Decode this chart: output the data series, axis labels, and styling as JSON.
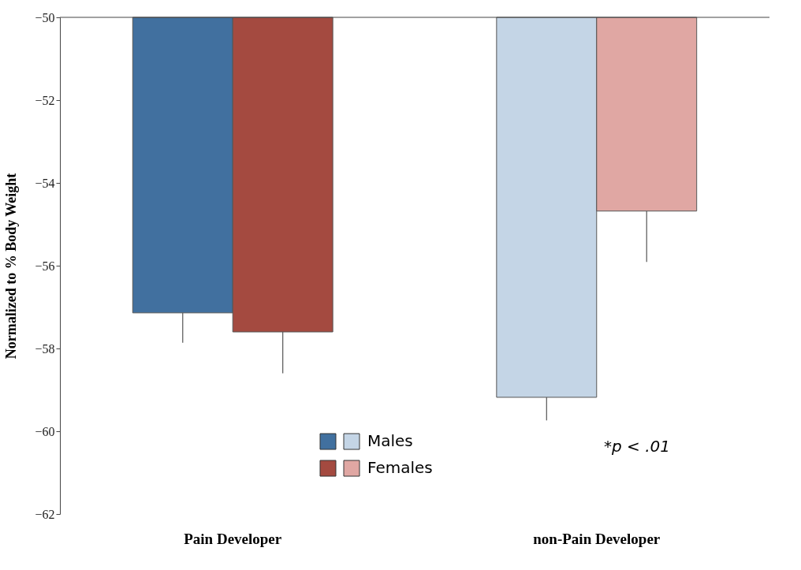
{
  "chart_data": {
    "type": "bar",
    "ylabel": "Normalized to % Body Weight",
    "categories": [
      "Pain Developer",
      "non-Pain Developer"
    ],
    "series": [
      {
        "name": "Males",
        "colors": [
          "#41709f",
          "#c4d5e6"
        ],
        "values": [
          -57.14,
          -59.18
        ],
        "errors": [
          [
            -57.86,
            -57.14
          ],
          [
            -59.74,
            -59.18
          ]
        ]
      },
      {
        "name": "Females",
        "colors": [
          "#a44a40",
          "#e0a7a3"
        ],
        "values": [
          -57.6,
          -54.68
        ],
        "errors": [
          [
            -58.6,
            -57.6
          ],
          [
            -55.91,
            -54.68
          ]
        ]
      }
    ],
    "ylim": [
      -62,
      -50
    ],
    "yticks": [
      -62,
      -60,
      -58,
      -56,
      -54,
      -52,
      -50
    ],
    "grid": false,
    "legend": "bottom",
    "annotations": [
      "*p < .01"
    ]
  }
}
